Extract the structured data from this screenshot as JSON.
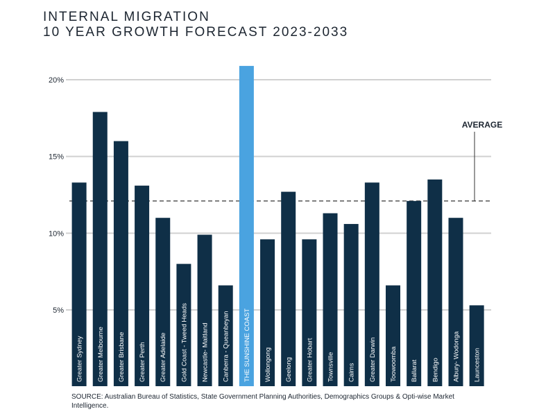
{
  "header": {
    "title_line1": "INTERNAL MIGRATION",
    "title_line2": "10 YEAR GROWTH FORECAST 2023-2033"
  },
  "source_note": "SOURCE: Australian Bureau of Statistics, State Government Planning Authorities, Demographics Groups & Opti-wise Market Intelligence.",
  "colors": {
    "bar": "#0f2f47",
    "highlight": "#4aa3e0",
    "grid": "#d0d0d0",
    "text": "#1c2530",
    "bar_label": "#ffffff"
  },
  "chart_data": {
    "type": "bar",
    "title": "INTERNAL MIGRATION 10 YEAR GROWTH FORECAST 2023-2033",
    "xlabel": "",
    "ylabel": "",
    "ylim": [
      0,
      20
    ],
    "yticks": [
      5,
      10,
      15,
      20
    ],
    "ytick_labels": [
      "5%",
      "10%",
      "15%",
      "20%"
    ],
    "grid": true,
    "categories": [
      "Greater Sydney",
      "Greater Melbourne",
      "Greater Brisbane",
      "Greater Perth",
      "Greater Adelaide",
      "Gold Coast - Tweed Heads",
      "Newcastle- Maitland",
      "Canberra - Queanbeyan",
      "THE SUNSHINE COAST",
      "Wollongong",
      "Geelong",
      "Greater Hobart",
      "Townsville",
      "Cairns",
      "Greater Darwin",
      "Toowoomba",
      "Ballarat",
      "Bendigo",
      "Albury- Wodonga",
      "Launceston"
    ],
    "values": [
      13.3,
      17.9,
      16.0,
      13.1,
      11.0,
      8.0,
      9.9,
      6.6,
      20.9,
      9.6,
      12.7,
      9.6,
      11.3,
      10.6,
      13.3,
      6.6,
      12.1,
      13.5,
      11.0,
      5.3
    ],
    "highlight_index": 8,
    "average": {
      "label": "AVERAGE",
      "value": 12.1
    }
  }
}
